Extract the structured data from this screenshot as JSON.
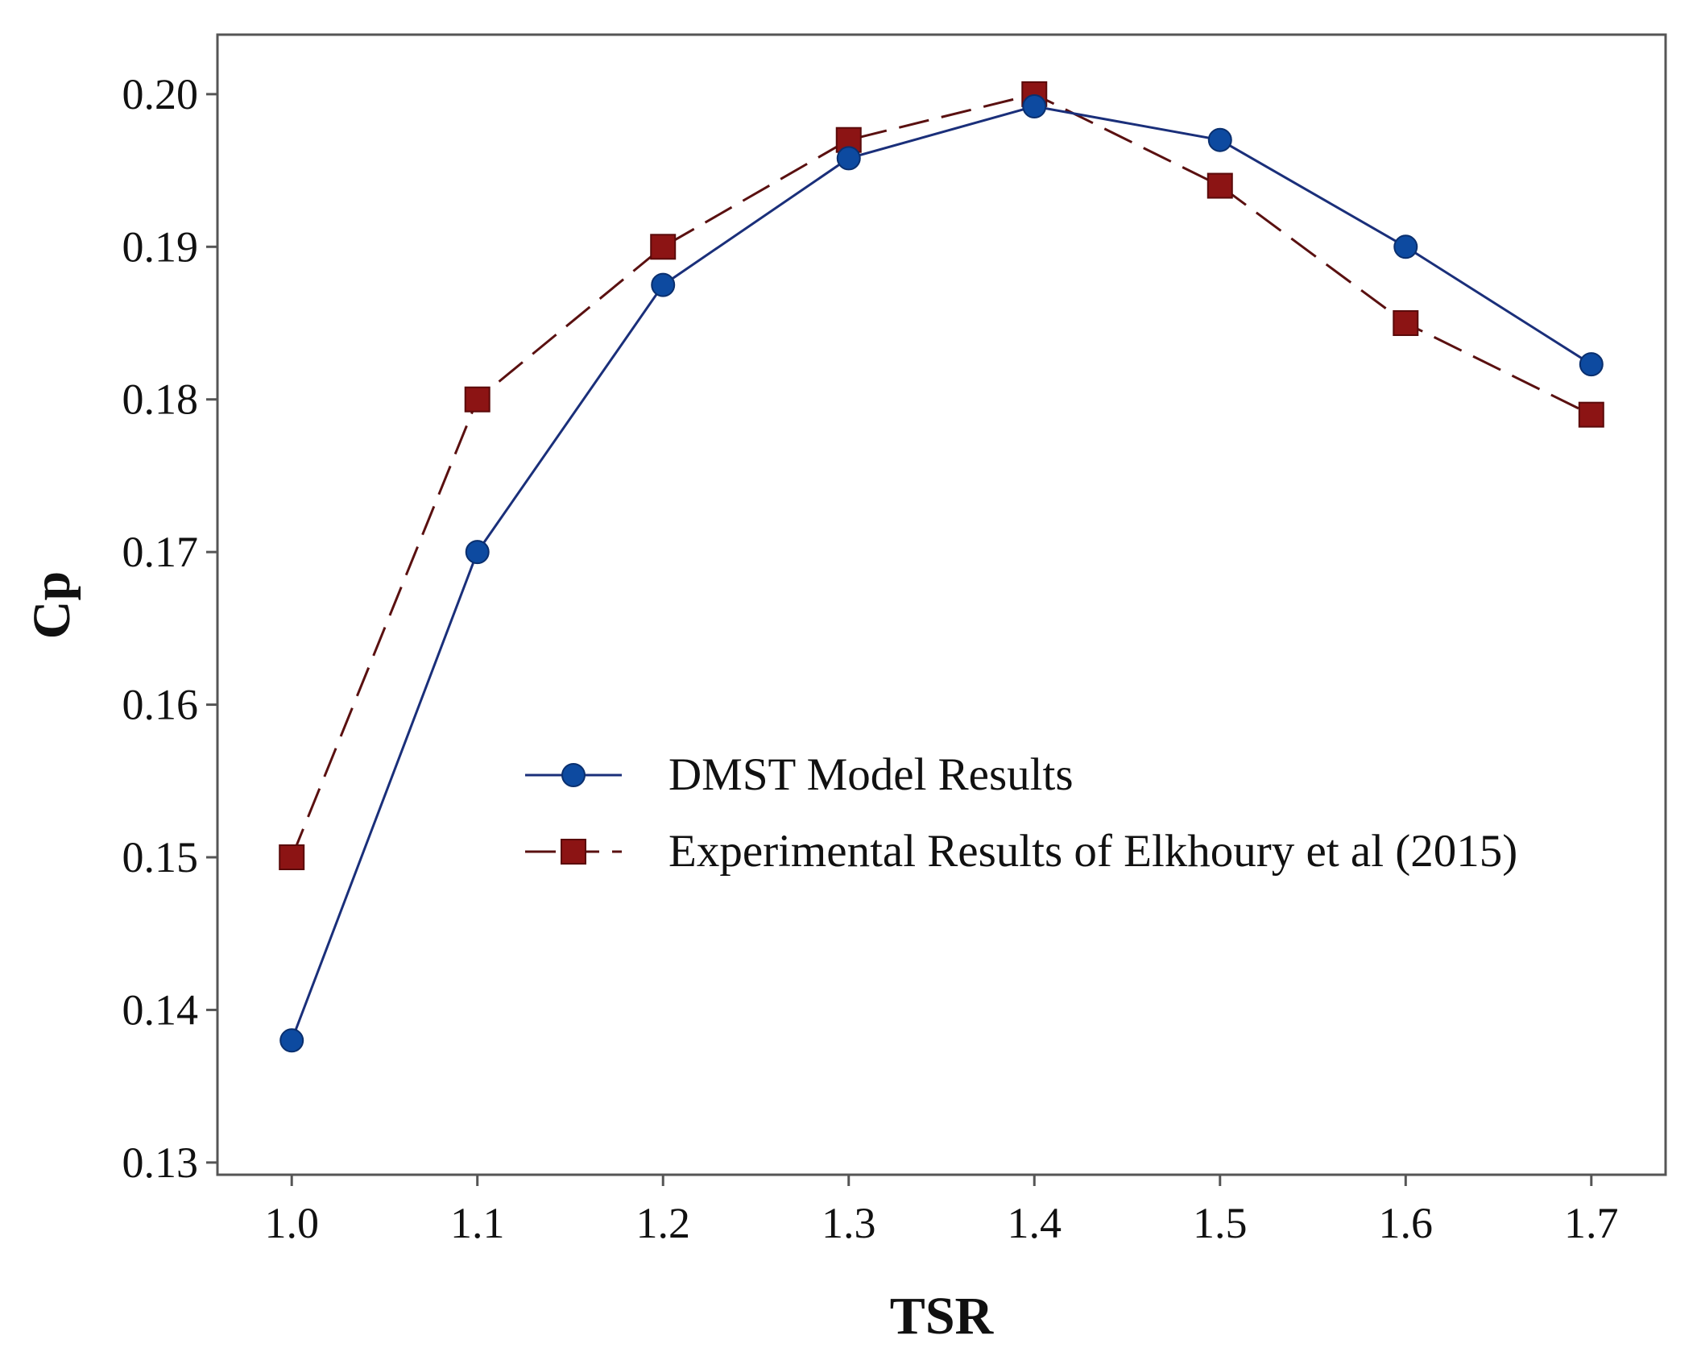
{
  "chart_data": {
    "type": "line",
    "title": "",
    "xlabel": "TSR",
    "ylabel": "Cp",
    "x": [
      1.0,
      1.1,
      1.2,
      1.3,
      1.4,
      1.5,
      1.6,
      1.7
    ],
    "x_tick_labels": [
      "1.0",
      "1.1",
      "1.2",
      "1.3",
      "1.4",
      "1.5",
      "1.6",
      "1.7"
    ],
    "y_tick_values": [
      0.13,
      0.14,
      0.15,
      0.16,
      0.17,
      0.18,
      0.19,
      0.2
    ],
    "y_tick_labels": [
      "0.13",
      "0.14",
      "0.15",
      "0.16",
      "0.17",
      "0.18",
      "0.19",
      "0.20"
    ],
    "xlim": [
      0.96,
      1.74
    ],
    "ylim": [
      0.1292,
      0.2039
    ],
    "grid": false,
    "legend_position": "center-right",
    "series": [
      {
        "name": "DMST Model Results",
        "values": [
          0.138,
          0.17,
          0.1875,
          0.1958,
          0.1992,
          0.197,
          0.19,
          0.1823
        ],
        "color": "#1a2f7a",
        "marker_color": "#0d4aa0",
        "marker": "circle",
        "line_style": "solid"
      },
      {
        "name": "Experimental Results of Elkhoury et al (2015)",
        "values": [
          0.15,
          0.18,
          0.19,
          0.197,
          0.2,
          0.194,
          0.185,
          0.179
        ],
        "color": "#5a1010",
        "marker_color": "#8c1414",
        "marker": "square",
        "line_style": "dashed"
      }
    ]
  }
}
